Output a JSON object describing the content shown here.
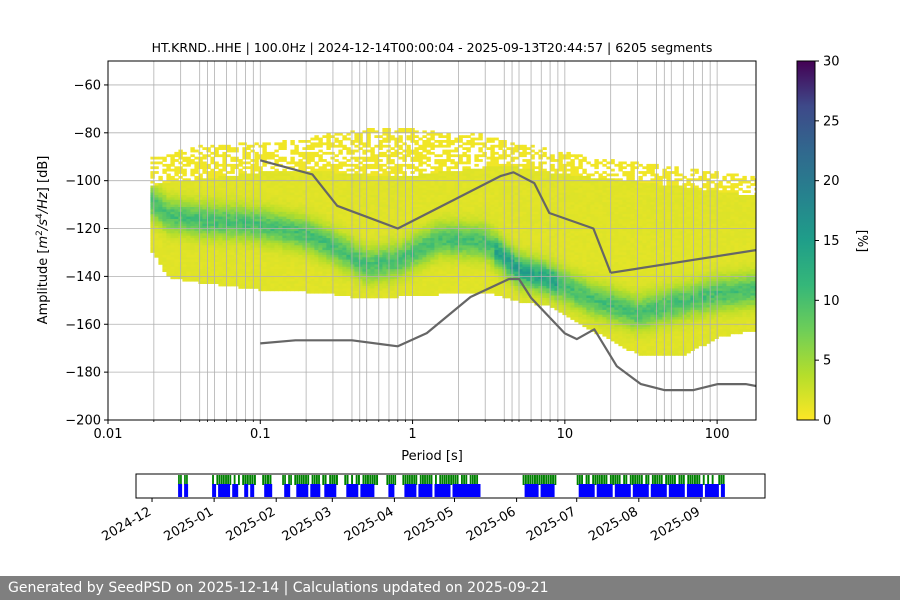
{
  "footer": "Generated by SeedPSD on 2025-12-14 | Calculations updated on 2025-09-21",
  "chart_data": [
    {
      "type": "heatmap",
      "title": "HT.KRND..HHE | 100.0Hz | 2024-12-14T00:00:04 - 2025-09-13T20:44:57 | 6205 segments",
      "xlabel": "Period [s]",
      "ylabel_parts": [
        "Amplitude [",
        "m",
        "2",
        "/",
        "s",
        "4",
        "/",
        "Hz",
        "] [dB]"
      ],
      "x_scale": "log",
      "xlim": [
        0.01,
        180
      ],
      "ylim": [
        -200,
        -50
      ],
      "xticks": [
        0.01,
        0.1,
        1,
        10,
        100
      ],
      "xtick_labels": [
        "0.01",
        "0.1",
        "1",
        "10",
        "100"
      ],
      "yticks": [
        -200,
        -180,
        -160,
        -140,
        -120,
        -100,
        -80,
        -60
      ],
      "ytick_labels": [
        "−200",
        "−180",
        "−160",
        "−140",
        "−120",
        "−100",
        "−80",
        "−60"
      ],
      "grid": true,
      "colormap": "viridis",
      "colorbar": {
        "label": "[%]",
        "range": [
          0,
          30
        ],
        "ticks": [
          0,
          5,
          10,
          15,
          20,
          25,
          30
        ],
        "tick_labels": [
          "0",
          "5",
          "10",
          "15",
          "20",
          "25",
          "30"
        ]
      },
      "psd_envelope": {
        "period": [
          0.019,
          0.025,
          0.04,
          0.07,
          0.1,
          0.2,
          0.3,
          0.5,
          0.8,
          1.5,
          3,
          5,
          8,
          15,
          30,
          60,
          100,
          180
        ],
        "p_high": [
          -102,
          -100,
          -99,
          -97,
          -96,
          -96,
          -96,
          -97,
          -98,
          -96,
          -94,
          -94,
          -96,
          -98,
          -100,
          -102,
          -104,
          -106
        ],
        "p_mode": [
          -108,
          -114,
          -116,
          -117,
          -118,
          -122,
          -127,
          -135,
          -133,
          -124,
          -125,
          -137,
          -141,
          -149,
          -155,
          -150,
          -147,
          -145
        ],
        "p_low": [
          -128,
          -140,
          -142,
          -144,
          -145,
          -146,
          -147,
          -149,
          -148,
          -147,
          -146,
          -150,
          -152,
          -162,
          -172,
          -173,
          -165,
          -162
        ],
        "p_outer_high": [
          -90,
          -88,
          -85,
          -84,
          -84,
          -82,
          -79,
          -78,
          -77,
          -79,
          -80,
          -84,
          -86,
          -90,
          -92,
          -94,
          -96,
          -98
        ]
      },
      "noise_models": {
        "high": {
          "period": [
            0.1,
            0.22,
            0.32,
            0.8,
            3.8,
            4.6,
            6.3,
            7.9,
            15.4,
            20
          ],
          "db": [
            -91.5,
            -97.4,
            -110.5,
            -120,
            -98,
            -96.5,
            -101,
            -113.5,
            -120,
            -138.5
          ]
        },
        "high_tail": {
          "period": [
            20,
            180
          ],
          "db": [
            -138.5,
            -129
          ]
        },
        "low": {
          "period": [
            0.1,
            0.17,
            0.4,
            0.8,
            1.24,
            2.4,
            4.3,
            5,
            6,
            10,
            12,
            15.6,
            21.9,
            31.6,
            45,
            70,
            101,
            154,
            180
          ],
          "db": [
            -168,
            -166.7,
            -166.7,
            -169.2,
            -163.7,
            -148.6,
            -141.1,
            -141.1,
            -149,
            -163.8,
            -166.2,
            -162.1,
            -177.5,
            -185,
            -187.5,
            -187.5,
            -185,
            -185,
            -185.8
          ]
        }
      },
      "vertical_lines_period": [
        0.02,
        0.03,
        0.04,
        0.045,
        0.05,
        0.06,
        0.07,
        0.08,
        0.09,
        0.2,
        0.3,
        0.4,
        0.45,
        0.5,
        0.6,
        0.7,
        0.8,
        0.9,
        2,
        3,
        4,
        4.5,
        5,
        6,
        7,
        8,
        9,
        20,
        30,
        40,
        45,
        50,
        60,
        70,
        80,
        90
      ]
    },
    {
      "type": "timeline",
      "x_ticks": [
        "2024-12-01",
        "2025-01-01",
        "2025-02-01",
        "2025-03-01",
        "2025-04-01",
        "2025-05-01",
        "2025-06-01",
        "2025-07-01",
        "2025-08-01",
        "2025-09-01"
      ],
      "x_tick_labels": [
        "2024-12",
        "2025-01",
        "2025-02",
        "2025-03",
        "2025-04",
        "2025-05",
        "2025-06",
        "2025-07",
        "2025-08",
        "2025-09"
      ],
      "xlim": [
        "2024-11-23",
        "2025-10-03"
      ],
      "colors": {
        "available": "#008000",
        "used": "#0000ff"
      },
      "available_blocks": [
        [
          "2024-12-14",
          "2024-12-19"
        ],
        [
          "2024-12-31",
          "2025-01-14"
        ],
        [
          "2025-01-15",
          "2025-01-22"
        ],
        [
          "2025-01-25",
          "2025-01-31"
        ],
        [
          "2025-02-04",
          "2025-02-09"
        ],
        [
          "2025-02-10",
          "2025-02-23"
        ],
        [
          "2025-02-24",
          "2025-03-04"
        ],
        [
          "2025-03-07",
          "2025-03-24"
        ],
        [
          "2025-03-28",
          "2025-04-02"
        ],
        [
          "2025-04-05",
          "2025-05-14"
        ],
        [
          "2025-06-04",
          "2025-06-21"
        ],
        [
          "2025-07-01",
          "2025-09-13"
        ]
      ],
      "used_blocks": [
        [
          "2024-12-14",
          "2024-12-16"
        ],
        [
          "2024-12-17",
          "2024-12-19"
        ],
        [
          "2024-12-31",
          "2025-01-02"
        ],
        [
          "2025-01-03",
          "2025-01-09"
        ],
        [
          "2025-01-10",
          "2025-01-13"
        ],
        [
          "2025-01-16",
          "2025-01-18"
        ],
        [
          "2025-01-19",
          "2025-01-21"
        ],
        [
          "2025-01-26",
          "2025-01-30"
        ],
        [
          "2025-02-05",
          "2025-02-08"
        ],
        [
          "2025-02-11",
          "2025-02-17"
        ],
        [
          "2025-02-18",
          "2025-02-23"
        ],
        [
          "2025-02-25",
          "2025-03-03"
        ],
        [
          "2025-03-08",
          "2025-03-14"
        ],
        [
          "2025-03-15",
          "2025-03-22"
        ],
        [
          "2025-03-29",
          "2025-04-01"
        ],
        [
          "2025-04-06",
          "2025-04-12"
        ],
        [
          "2025-04-13",
          "2025-04-20"
        ],
        [
          "2025-04-21",
          "2025-04-29"
        ],
        [
          "2025-04-30",
          "2025-05-14"
        ],
        [
          "2025-06-05",
          "2025-06-12"
        ],
        [
          "2025-06-13",
          "2025-06-20"
        ],
        [
          "2025-07-02",
          "2025-07-10"
        ],
        [
          "2025-07-11",
          "2025-07-19"
        ],
        [
          "2025-07-20",
          "2025-07-28"
        ],
        [
          "2025-07-29",
          "2025-08-06"
        ],
        [
          "2025-08-07",
          "2025-08-15"
        ],
        [
          "2025-08-16",
          "2025-08-24"
        ],
        [
          "2025-08-25",
          "2025-09-02"
        ],
        [
          "2025-09-03",
          "2025-09-10"
        ],
        [
          "2025-09-11",
          "2025-09-13"
        ]
      ]
    }
  ]
}
